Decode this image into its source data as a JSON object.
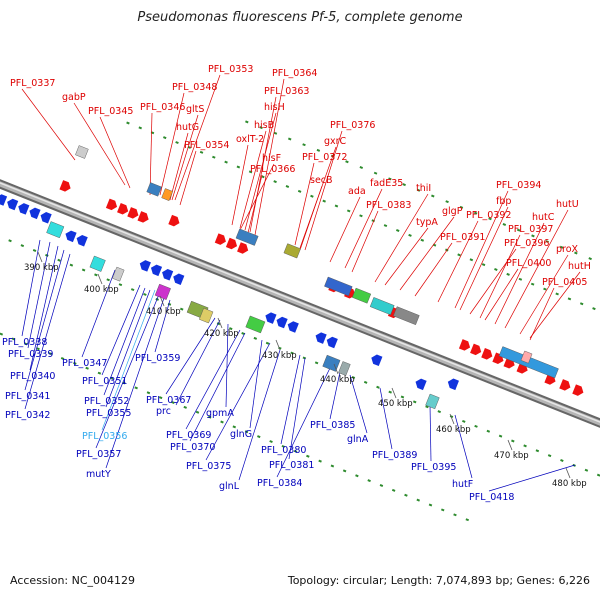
{
  "title": "Pseudomonas fluorescens Pf-5, complete genome",
  "footer": {
    "accession": "Accession: NC_004129",
    "summary": "Topology: circular; Length: 7,074,893 bp; Genes: 6,226"
  },
  "colors": {
    "forward_label": "#dd0000",
    "reverse_label": "#0000bb",
    "highlight_label": "#33aaee",
    "forward_gene": "#ee1111",
    "reverse_gene": "#1133dd",
    "backbone": "#9a9a9a",
    "dots": "#2e8b2e"
  },
  "ticks": [
    "390 kbp",
    "400 kbp",
    "410 kbp",
    "420 kbp",
    "430 kbp",
    "440 kbp",
    "450 kbp",
    "460 kbp",
    "470 kbp",
    "480 kbp"
  ],
  "forward_labels": [
    "PFL_0337",
    "gabP",
    "PFL_0345",
    "PFL_0346",
    "PFL_0348",
    "hutG",
    "gltS",
    "PFL_0353",
    "PFL_0354",
    "oxlT-2",
    "hisB",
    "hisH",
    "PFL_0363",
    "PFL_0364",
    "hisF",
    "PFL_0366",
    "PFL_0372",
    "gxrC",
    "PFL_0376",
    "secB",
    "ada",
    "fadE35",
    "PFL_0383",
    "thiI",
    "typA",
    "glgP",
    "PFL_0391",
    "PFL_0392",
    "PFL_0394",
    "fbp",
    "PFL_0396",
    "PFL_0397",
    "hutC",
    "hutU",
    "PFL_0400",
    "proX",
    "hutH",
    "PFL_0405"
  ],
  "reverse_labels": [
    "PFL_0338",
    "PFL_0339",
    "PFL_0340",
    "PFL_0341",
    "PFL_0342",
    "PFL_0347",
    "PFL_0351",
    "PFL_0352",
    "PFL_0355",
    "PFL_0356",
    "PFL_0357",
    "mutY",
    "PFL_0359",
    "PFL_0367",
    "prc",
    "gpmA",
    "PFL_0369",
    "PFL_0370",
    "glnG",
    "PFL_0375",
    "PFL_0380",
    "PFL_0381",
    "glnL",
    "PFL_0384",
    "PFL_0385",
    "glnA",
    "PFL_0389",
    "PFL_0395",
    "hutF",
    "PFL_0418"
  ],
  "highlighted_labels": [
    "PFL_0356"
  ]
}
